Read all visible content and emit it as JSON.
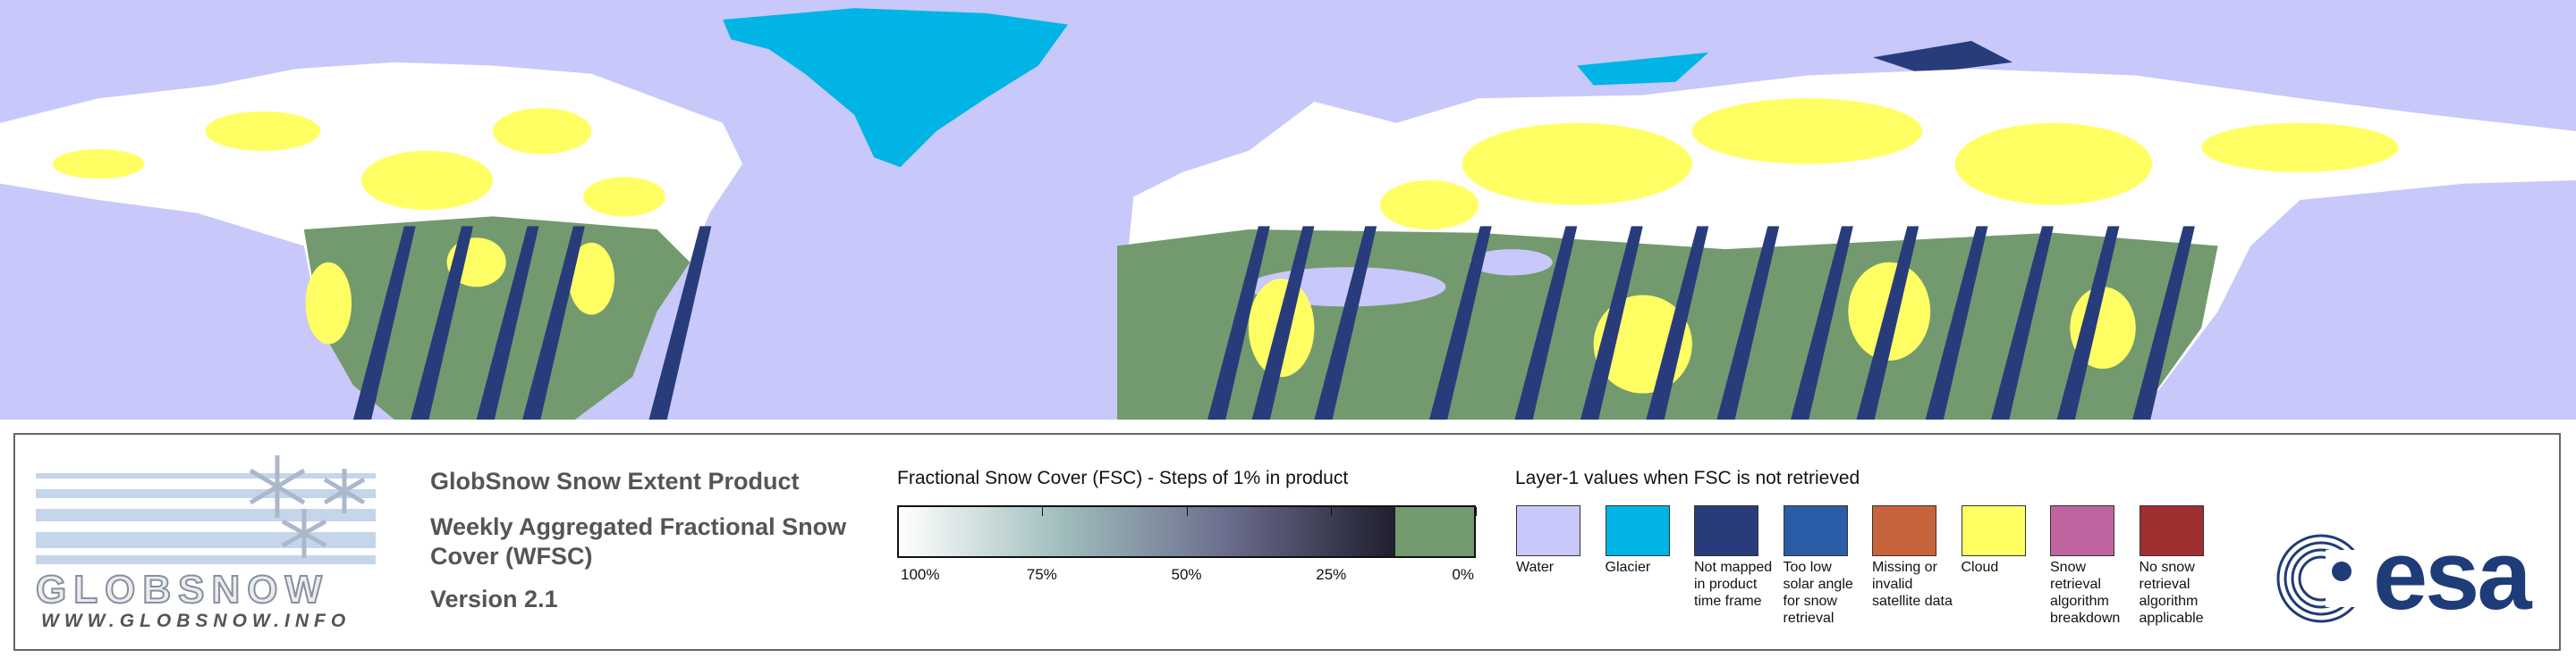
{
  "logo": {
    "name": "GLOBSNOW",
    "url": "WWW.GLOBSNOW.INFO"
  },
  "product": {
    "title": "GlobSnow Snow Extent Product",
    "subtitle": "Weekly Aggregated Fractional Snow Cover (WFSC)",
    "version": "Version 2.1"
  },
  "fsc_legend": {
    "title": "Fractional Snow Cover (FSC) - Steps of 1% in product",
    "range": [
      100,
      0
    ],
    "gradient": [
      "#ffffff",
      "#9fbcbc",
      "#6a6c8c",
      "#1e1e2d"
    ],
    "no_snow_color": "#739a6e",
    "ticks": [
      {
        "value": 100,
        "label": "100%"
      },
      {
        "value": 75,
        "label": "75%"
      },
      {
        "value": 50,
        "label": "50%"
      },
      {
        "value": 25,
        "label": "25%"
      },
      {
        "value": 0,
        "label": "0%"
      }
    ]
  },
  "layer1_legend": {
    "title": "Layer-1 values when FSC is not retrieved",
    "items": [
      {
        "label": "Water",
        "color": "#c8c8fa"
      },
      {
        "label": "Glacier",
        "color": "#00b4e6"
      },
      {
        "label": "Not mapped in product time frame",
        "color": "#283c7c"
      },
      {
        "label": "Too low solar angle for snow retrieval",
        "color": "#2a5ca8"
      },
      {
        "label": "Missing or invalid satellite data",
        "color": "#c8643c"
      },
      {
        "label": "Cloud",
        "color": "#ffff64"
      },
      {
        "label": "Snow retrieval algorithm breakdown",
        "color": "#c064a0"
      },
      {
        "label": "No snow retrieval algorithm applicable",
        "color": "#a03030"
      }
    ]
  },
  "esa": "esa"
}
